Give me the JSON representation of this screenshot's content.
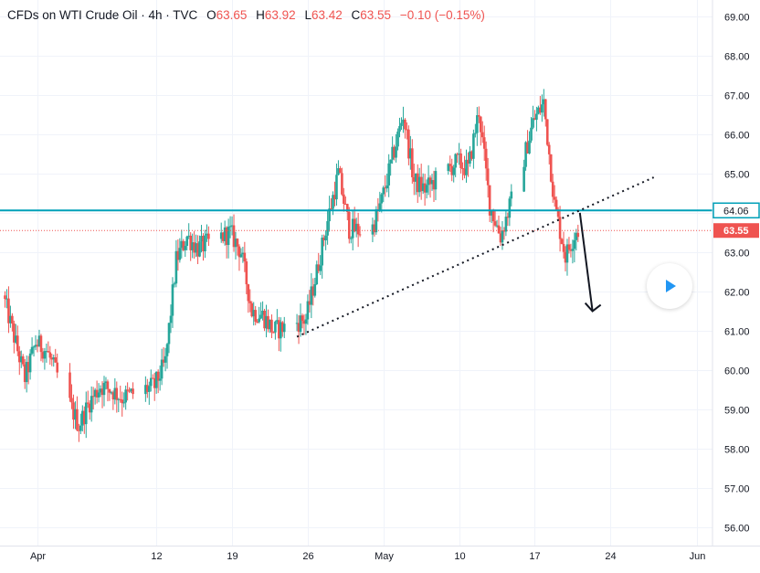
{
  "header": {
    "symbol": "CFDs on WTI Crude Oil · 4h · TVC",
    "open_label": "O",
    "open": "63.65",
    "high_label": "H",
    "high": "63.92",
    "low_label": "L",
    "low": "63.42",
    "close_label": "C",
    "close": "63.55",
    "change": "−0.10 (−0.15%)"
  },
  "price_tags": {
    "level": "64.06",
    "last": "63.55"
  },
  "colors": {
    "up": "#26a69a",
    "down": "#ef5350",
    "level_line": "#00a0b8",
    "last_price": "#ef5350",
    "grid": "#f0f3fa"
  },
  "icons": {
    "play": "play-icon"
  },
  "chart_data": {
    "type": "candlestick",
    "timeframe": "4h",
    "ylim": [
      55.6,
      69.3
    ],
    "y_ticks": [
      "56.00",
      "57.00",
      "58.00",
      "59.00",
      "60.00",
      "61.00",
      "62.00",
      "63.00",
      "64.00",
      "65.00",
      "66.00",
      "67.00",
      "68.00",
      "69.00"
    ],
    "x_ticks": [
      "Apr",
      "12",
      "19",
      "26",
      "May",
      "10",
      "17",
      "24",
      "Jun"
    ],
    "x_tick_dates": [
      "2021-04-01",
      "2021-04-12",
      "2021-04-19",
      "2021-04-26",
      "2021-05-03",
      "2021-05-10",
      "2021-05-17",
      "2021-05-24",
      "2021-06-01"
    ],
    "xlim": [
      "2021-03-29",
      "2021-06-01"
    ],
    "grid": true,
    "price_path": [
      [
        "2021-03-29",
        61.9
      ],
      [
        "2021-03-31",
        59.8
      ],
      [
        "2021-04-01",
        60.7
      ],
      [
        "2021-04-02",
        60.5
      ],
      [
        "2021-04-05",
        58.6
      ],
      [
        "2021-04-06",
        59.2
      ],
      [
        "2021-04-07",
        59.6
      ],
      [
        "2021-04-08",
        59.5
      ],
      [
        "2021-04-09",
        59.3
      ],
      [
        "2021-04-12",
        59.6
      ],
      [
        "2021-04-13",
        60.2
      ],
      [
        "2021-04-14",
        62.8
      ],
      [
        "2021-04-15",
        63.4
      ],
      [
        "2021-04-16",
        63.1
      ],
      [
        "2021-04-19",
        63.5
      ],
      [
        "2021-04-20",
        63.0
      ],
      [
        "2021-04-21",
        61.5
      ],
      [
        "2021-04-22",
        61.4
      ],
      [
        "2021-04-23",
        61.0
      ],
      [
        "2021-04-26",
        61.3
      ],
      [
        "2021-04-27",
        62.5
      ],
      [
        "2021-04-28",
        63.8
      ],
      [
        "2021-04-29",
        65.0
      ],
      [
        "2021-04-30",
        63.6
      ],
      [
        "2021-05-02",
        63.5
      ],
      [
        "2021-05-03",
        64.3
      ],
      [
        "2021-05-04",
        65.4
      ],
      [
        "2021-05-05",
        66.5
      ],
      [
        "2021-05-06",
        64.8
      ],
      [
        "2021-05-07",
        64.6
      ],
      [
        "2021-05-10",
        65.3
      ],
      [
        "2021-05-11",
        65.1
      ],
      [
        "2021-05-12",
        66.6
      ],
      [
        "2021-05-13",
        64.2
      ],
      [
        "2021-05-14",
        63.4
      ],
      [
        "2021-05-16",
        65.2
      ],
      [
        "2021-05-17",
        66.3
      ],
      [
        "2021-05-18",
        66.8
      ],
      [
        "2021-05-19",
        64.2
      ],
      [
        "2021-05-20",
        62.9
      ],
      [
        "2021-05-21",
        63.55
      ]
    ],
    "horizontal_level": 64.06,
    "last_price": 63.55,
    "trendline": {
      "style": "dotted",
      "points": [
        [
          "2021-04-25",
          60.85
        ],
        [
          "2021-05-28",
          64.9
        ]
      ]
    },
    "arrow": {
      "direction": "down",
      "from": [
        "2021-05-21",
        64.0
      ],
      "to": [
        "2021-05-22",
        61.5
      ]
    }
  }
}
